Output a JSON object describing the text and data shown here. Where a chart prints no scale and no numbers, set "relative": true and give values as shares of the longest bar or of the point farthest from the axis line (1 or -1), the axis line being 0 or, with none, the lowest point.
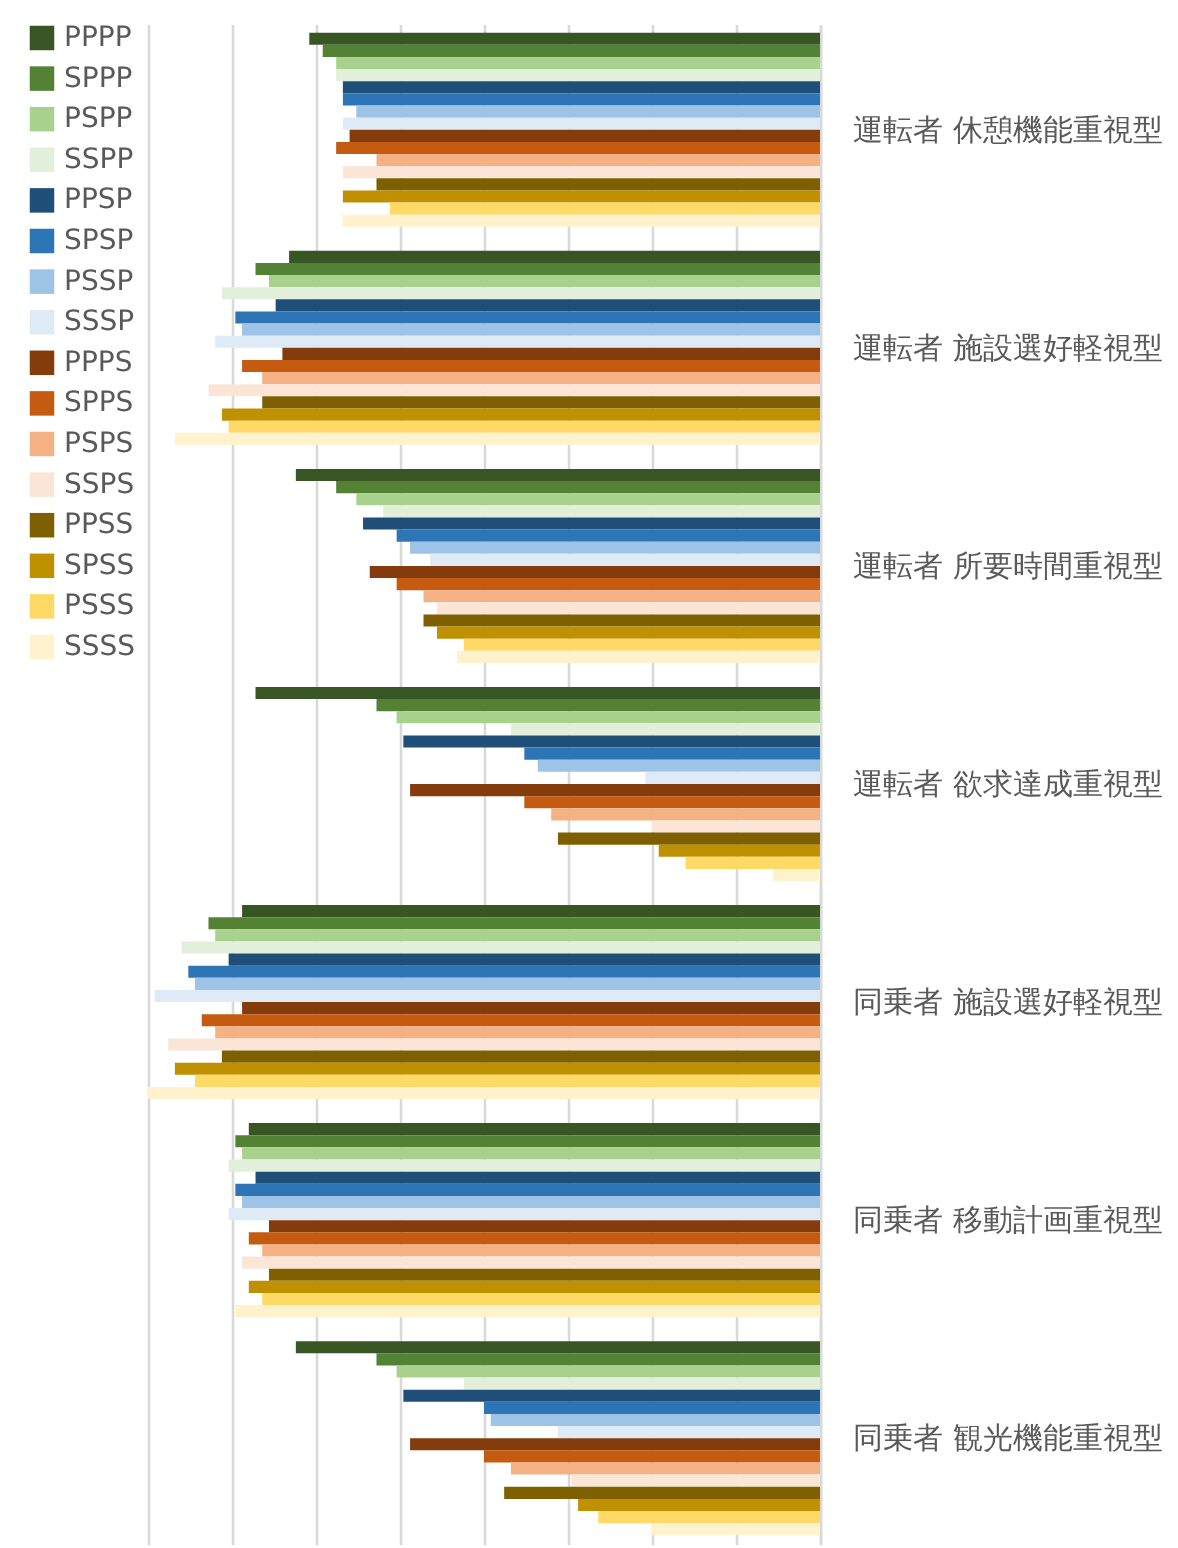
{
  "chart_data": {
    "type": "bar",
    "orientation": "horizontal",
    "relative": true,
    "categories": [
      "運転者 休憩機能重視型",
      "運転者 施設選好軽視型",
      "運転者 所要時間重視型",
      "運転者 欲求達成重視型",
      "同乗者 施設選好軽視型",
      "同乗者 移動計画重視型",
      "同乗者 観光機能重視型"
    ],
    "series": [
      {
        "name": "PPPP",
        "color": "#375623",
        "values": [
          -0.76,
          -0.79,
          -0.78,
          -0.84,
          -0.86,
          -0.85,
          -0.78
        ]
      },
      {
        "name": "SPPP",
        "color": "#548235",
        "values": [
          -0.74,
          -0.84,
          -0.72,
          -0.66,
          -0.91,
          -0.87,
          -0.66
        ]
      },
      {
        "name": "PSPP",
        "color": "#a9d18e",
        "values": [
          -0.72,
          -0.82,
          -0.69,
          -0.63,
          -0.9,
          -0.86,
          -0.63
        ]
      },
      {
        "name": "SSPP",
        "color": "#e2efda",
        "values": [
          -0.72,
          -0.89,
          -0.65,
          -0.46,
          -0.95,
          -0.88,
          -0.53
        ]
      },
      {
        "name": "PPSP",
        "color": "#1f4e79",
        "values": [
          -0.71,
          -0.81,
          -0.68,
          -0.62,
          -0.88,
          -0.84,
          -0.62
        ]
      },
      {
        "name": "SPSP",
        "color": "#2e75b6",
        "values": [
          -0.71,
          -0.87,
          -0.63,
          -0.44,
          -0.94,
          -0.87,
          -0.5
        ]
      },
      {
        "name": "PSSP",
        "color": "#9dc3e6",
        "values": [
          -0.69,
          -0.86,
          -0.61,
          -0.42,
          -0.93,
          -0.86,
          -0.49
        ]
      },
      {
        "name": "SSSP",
        "color": "#deebf7",
        "values": [
          -0.71,
          -0.9,
          -0.58,
          -0.26,
          -0.99,
          -0.88,
          -0.39
        ]
      },
      {
        "name": "PPPS",
        "color": "#843c0c",
        "values": [
          -0.7,
          -0.8,
          -0.67,
          -0.61,
          -0.86,
          -0.82,
          -0.61
        ]
      },
      {
        "name": "SPPS",
        "color": "#c55a11",
        "values": [
          -0.72,
          -0.86,
          -0.63,
          -0.44,
          -0.92,
          -0.85,
          -0.5
        ]
      },
      {
        "name": "PSPS",
        "color": "#f4b183",
        "values": [
          -0.66,
          -0.83,
          -0.59,
          -0.4,
          -0.9,
          -0.83,
          -0.46
        ]
      },
      {
        "name": "SSPS",
        "color": "#fbe5d6",
        "values": [
          -0.71,
          -0.91,
          -0.57,
          -0.25,
          -0.97,
          -0.86,
          -0.37
        ]
      },
      {
        "name": "PPSS",
        "color": "#7f6000",
        "values": [
          -0.66,
          -0.83,
          -0.59,
          -0.39,
          -0.89,
          -0.82,
          -0.47
        ]
      },
      {
        "name": "SPSS",
        "color": "#bf9000",
        "values": [
          -0.71,
          -0.89,
          -0.57,
          -0.24,
          -0.96,
          -0.85,
          -0.36
        ]
      },
      {
        "name": "PSSS",
        "color": "#ffd966",
        "values": [
          -0.64,
          -0.88,
          -0.53,
          -0.2,
          -0.93,
          -0.83,
          -0.33
        ]
      },
      {
        "name": "SSSS",
        "color": "#fff2cc",
        "values": [
          -0.71,
          -0.96,
          -0.54,
          -0.07,
          -1.0,
          -0.87,
          -0.25
        ]
      }
    ],
    "legend": "left",
    "grid": "x",
    "tick_labels": "y"
  }
}
